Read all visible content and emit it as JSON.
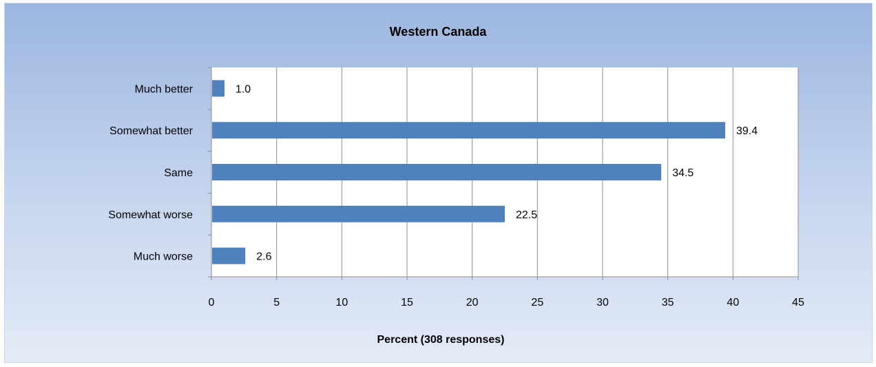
{
  "chart_data": {
    "type": "bar",
    "orientation": "horizontal",
    "title": "Western Canada",
    "xlabel": "Percent (308 responses)",
    "ylabel": "",
    "categories": [
      "Much better",
      "Somewhat better",
      "Same",
      "Somewhat worse",
      "Much worse"
    ],
    "values": [
      1.0,
      39.4,
      34.5,
      22.5,
      2.6
    ],
    "data_labels": [
      "1.0",
      "39.4",
      "34.5",
      "22.5",
      "2.6"
    ],
    "xlim": [
      0,
      45
    ],
    "xticks": [
      "0",
      "5",
      "10",
      "15",
      "20",
      "25",
      "30",
      "35",
      "40",
      "45"
    ],
    "grid": "vertical",
    "legend": "none",
    "bar_color": "#4f81bd",
    "grid_color": "#8c8c8c"
  }
}
